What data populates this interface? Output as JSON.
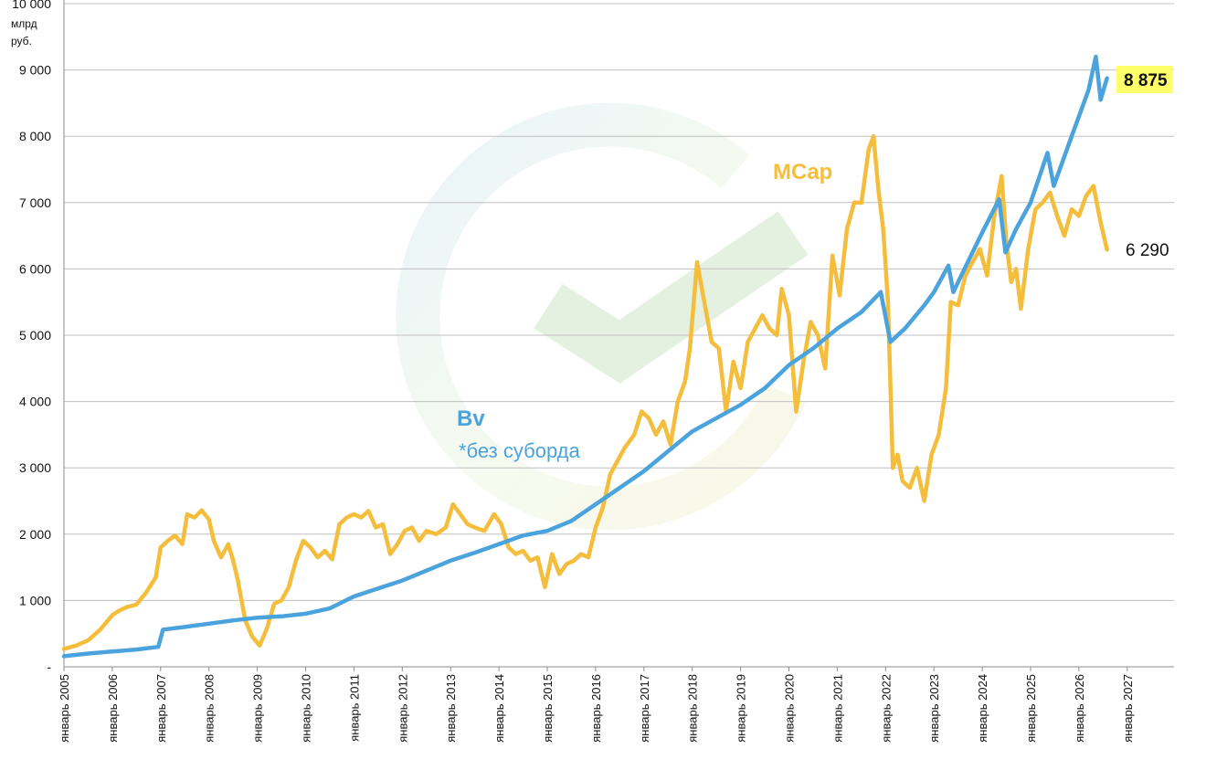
{
  "chart_data": {
    "type": "line",
    "y_unit_label": [
      "млрд",
      "руб."
    ],
    "ylim": [
      0,
      10000
    ],
    "y_ticks": [
      {
        "value": 0,
        "label": "-"
      },
      {
        "value": 1000,
        "label": "1 000"
      },
      {
        "value": 2000,
        "label": "2 000"
      },
      {
        "value": 3000,
        "label": "3 000"
      },
      {
        "value": 4000,
        "label": "4 000"
      },
      {
        "value": 5000,
        "label": "5 000"
      },
      {
        "value": 6000,
        "label": "6 000"
      },
      {
        "value": 7000,
        "label": "7 000"
      },
      {
        "value": 8000,
        "label": "8 000"
      },
      {
        "value": 9000,
        "label": "9 000"
      },
      {
        "value": 10000,
        "label": "10 000"
      }
    ],
    "xlim": [
      2005,
      2028
    ],
    "x_ticks": [
      {
        "value": 2005,
        "label": "январь 2005"
      },
      {
        "value": 2006,
        "label": "январь 2006"
      },
      {
        "value": 2007,
        "label": "январь 2007"
      },
      {
        "value": 2008,
        "label": "январь 2008"
      },
      {
        "value": 2009,
        "label": "январь 2009"
      },
      {
        "value": 2010,
        "label": "январь 2010"
      },
      {
        "value": 2011,
        "label": "январь 2011"
      },
      {
        "value": 2012,
        "label": "январь 2012"
      },
      {
        "value": 2013,
        "label": "январь 2013"
      },
      {
        "value": 2014,
        "label": "январь 2014"
      },
      {
        "value": 2015,
        "label": "январь 2015"
      },
      {
        "value": 2016,
        "label": "январь 2016"
      },
      {
        "value": 2017,
        "label": "январь 2017"
      },
      {
        "value": 2018,
        "label": "январь 2018"
      },
      {
        "value": 2019,
        "label": "январь 2019"
      },
      {
        "value": 2020,
        "label": "январь 2020"
      },
      {
        "value": 2021,
        "label": "январь 2021"
      },
      {
        "value": 2022,
        "label": "январь 2022"
      },
      {
        "value": 2023,
        "label": "январь 2023"
      },
      {
        "value": 2024,
        "label": "январь 2024"
      },
      {
        "value": 2025,
        "label": "январь 2025"
      },
      {
        "value": 2026,
        "label": "январь 2026"
      },
      {
        "value": 2027,
        "label": "январь 2027"
      }
    ],
    "grid": true,
    "series": [
      {
        "name": "MCap",
        "color": "#f4bd3c",
        "end_value_label": "6 290",
        "points": [
          [
            2005.0,
            270
          ],
          [
            2005.25,
            320
          ],
          [
            2005.5,
            400
          ],
          [
            2005.75,
            560
          ],
          [
            2006.0,
            780
          ],
          [
            2006.15,
            850
          ],
          [
            2006.3,
            900
          ],
          [
            2006.5,
            940
          ],
          [
            2006.7,
            1120
          ],
          [
            2006.9,
            1350
          ],
          [
            2007.0,
            1800
          ],
          [
            2007.15,
            1900
          ],
          [
            2007.3,
            1980
          ],
          [
            2007.45,
            1850
          ],
          [
            2007.55,
            2300
          ],
          [
            2007.7,
            2250
          ],
          [
            2007.85,
            2360
          ],
          [
            2008.0,
            2220
          ],
          [
            2008.1,
            1900
          ],
          [
            2008.25,
            1650
          ],
          [
            2008.4,
            1850
          ],
          [
            2008.5,
            1600
          ],
          [
            2008.6,
            1300
          ],
          [
            2008.75,
            700
          ],
          [
            2008.9,
            450
          ],
          [
            2009.05,
            320
          ],
          [
            2009.2,
            580
          ],
          [
            2009.35,
            950
          ],
          [
            2009.5,
            1000
          ],
          [
            2009.65,
            1200
          ],
          [
            2009.8,
            1600
          ],
          [
            2009.95,
            1900
          ],
          [
            2010.1,
            1800
          ],
          [
            2010.25,
            1650
          ],
          [
            2010.4,
            1750
          ],
          [
            2010.55,
            1620
          ],
          [
            2010.7,
            2150
          ],
          [
            2010.85,
            2250
          ],
          [
            2011.0,
            2300
          ],
          [
            2011.15,
            2250
          ],
          [
            2011.3,
            2350
          ],
          [
            2011.45,
            2100
          ],
          [
            2011.6,
            2150
          ],
          [
            2011.75,
            1700
          ],
          [
            2011.9,
            1850
          ],
          [
            2012.05,
            2050
          ],
          [
            2012.2,
            2100
          ],
          [
            2012.35,
            1900
          ],
          [
            2012.5,
            2050
          ],
          [
            2012.7,
            2000
          ],
          [
            2012.9,
            2100
          ],
          [
            2013.05,
            2450
          ],
          [
            2013.2,
            2300
          ],
          [
            2013.35,
            2150
          ],
          [
            2013.5,
            2100
          ],
          [
            2013.7,
            2050
          ],
          [
            2013.9,
            2300
          ],
          [
            2014.05,
            2150
          ],
          [
            2014.2,
            1800
          ],
          [
            2014.35,
            1700
          ],
          [
            2014.5,
            1750
          ],
          [
            2014.65,
            1600
          ],
          [
            2014.8,
            1650
          ],
          [
            2014.95,
            1200
          ],
          [
            2015.1,
            1700
          ],
          [
            2015.25,
            1400
          ],
          [
            2015.4,
            1550
          ],
          [
            2015.55,
            1600
          ],
          [
            2015.7,
            1700
          ],
          [
            2015.85,
            1650
          ],
          [
            2016.0,
            2100
          ],
          [
            2016.15,
            2400
          ],
          [
            2016.3,
            2900
          ],
          [
            2016.45,
            3100
          ],
          [
            2016.6,
            3300
          ],
          [
            2016.8,
            3500
          ],
          [
            2016.95,
            3850
          ],
          [
            2017.1,
            3750
          ],
          [
            2017.25,
            3500
          ],
          [
            2017.4,
            3700
          ],
          [
            2017.55,
            3350
          ],
          [
            2017.7,
            4000
          ],
          [
            2017.85,
            4300
          ],
          [
            2017.95,
            4800
          ],
          [
            2018.1,
            6100
          ],
          [
            2018.25,
            5500
          ],
          [
            2018.4,
            4900
          ],
          [
            2018.55,
            4800
          ],
          [
            2018.7,
            3850
          ],
          [
            2018.85,
            4600
          ],
          [
            2019.0,
            4200
          ],
          [
            2019.15,
            4900
          ],
          [
            2019.3,
            5100
          ],
          [
            2019.45,
            5300
          ],
          [
            2019.6,
            5100
          ],
          [
            2019.75,
            5000
          ],
          [
            2019.85,
            5700
          ],
          [
            2020.0,
            5300
          ],
          [
            2020.15,
            3850
          ],
          [
            2020.3,
            4600
          ],
          [
            2020.45,
            5200
          ],
          [
            2020.6,
            5000
          ],
          [
            2020.75,
            4500
          ],
          [
            2020.9,
            6200
          ],
          [
            2021.05,
            5600
          ],
          [
            2021.2,
            6600
          ],
          [
            2021.35,
            7000
          ],
          [
            2021.5,
            7000
          ],
          [
            2021.65,
            7800
          ],
          [
            2021.75,
            8000
          ],
          [
            2021.85,
            7200
          ],
          [
            2021.95,
            6600
          ],
          [
            2022.05,
            5500
          ],
          [
            2022.15,
            3000
          ],
          [
            2022.25,
            3200
          ],
          [
            2022.35,
            2800
          ],
          [
            2022.5,
            2700
          ],
          [
            2022.65,
            3000
          ],
          [
            2022.8,
            2500
          ],
          [
            2022.95,
            3200
          ],
          [
            2023.1,
            3500
          ],
          [
            2023.25,
            4200
          ],
          [
            2023.35,
            5500
          ],
          [
            2023.5,
            5450
          ],
          [
            2023.65,
            5900
          ],
          [
            2023.8,
            6100
          ],
          [
            2023.95,
            6300
          ],
          [
            2024.1,
            5900
          ],
          [
            2024.25,
            6800
          ],
          [
            2024.4,
            7400
          ],
          [
            2024.5,
            6400
          ],
          [
            2024.6,
            5800
          ],
          [
            2024.7,
            6000
          ],
          [
            2024.8,
            5400
          ],
          [
            2024.95,
            6300
          ],
          [
            2025.1,
            6900
          ],
          [
            2025.25,
            7000
          ],
          [
            2025.4,
            7150
          ],
          [
            2025.55,
            6800
          ],
          [
            2025.7,
            6500
          ],
          [
            2025.85,
            6900
          ],
          [
            2026.0,
            6800
          ],
          [
            2026.15,
            7100
          ],
          [
            2026.3,
            7250
          ],
          [
            2026.45,
            6700
          ],
          [
            2026.58,
            6290
          ]
        ]
      },
      {
        "name": "Bv",
        "color": "#4aa3dc",
        "end_value_label": "8 875",
        "points": [
          [
            2005.0,
            160
          ],
          [
            2005.5,
            200
          ],
          [
            2006.0,
            230
          ],
          [
            2006.5,
            260
          ],
          [
            2006.95,
            300
          ],
          [
            2007.05,
            560
          ],
          [
            2007.5,
            600
          ],
          [
            2008.0,
            650
          ],
          [
            2008.5,
            700
          ],
          [
            2009.0,
            740
          ],
          [
            2009.5,
            760
          ],
          [
            2010.0,
            800
          ],
          [
            2010.5,
            880
          ],
          [
            2011.0,
            1060
          ],
          [
            2011.5,
            1180
          ],
          [
            2012.0,
            1300
          ],
          [
            2012.5,
            1450
          ],
          [
            2013.0,
            1600
          ],
          [
            2013.5,
            1720
          ],
          [
            2014.0,
            1850
          ],
          [
            2014.5,
            1980
          ],
          [
            2015.0,
            2050
          ],
          [
            2015.5,
            2200
          ],
          [
            2016.0,
            2450
          ],
          [
            2016.5,
            2700
          ],
          [
            2017.0,
            2950
          ],
          [
            2017.5,
            3250
          ],
          [
            2018.0,
            3550
          ],
          [
            2018.5,
            3750
          ],
          [
            2019.0,
            3950
          ],
          [
            2019.5,
            4200
          ],
          [
            2020.0,
            4550
          ],
          [
            2020.5,
            4800
          ],
          [
            2021.0,
            5100
          ],
          [
            2021.5,
            5350
          ],
          [
            2021.9,
            5650
          ],
          [
            2022.1,
            4900
          ],
          [
            2022.4,
            5100
          ],
          [
            2022.8,
            5450
          ],
          [
            2023.0,
            5650
          ],
          [
            2023.3,
            6050
          ],
          [
            2023.4,
            5650
          ],
          [
            2023.7,
            6100
          ],
          [
            2024.0,
            6550
          ],
          [
            2024.35,
            7050
          ],
          [
            2024.48,
            6250
          ],
          [
            2024.7,
            6600
          ],
          [
            2025.0,
            7000
          ],
          [
            2025.35,
            7750
          ],
          [
            2025.48,
            7250
          ],
          [
            2025.8,
            7900
          ],
          [
            2026.2,
            8700
          ],
          [
            2026.35,
            9200
          ],
          [
            2026.45,
            8550
          ],
          [
            2026.58,
            8875
          ]
        ]
      }
    ],
    "annotations": {
      "mcap_label": "MCap",
      "bv_label": "Bv",
      "bv_note": "*без суборда"
    }
  }
}
